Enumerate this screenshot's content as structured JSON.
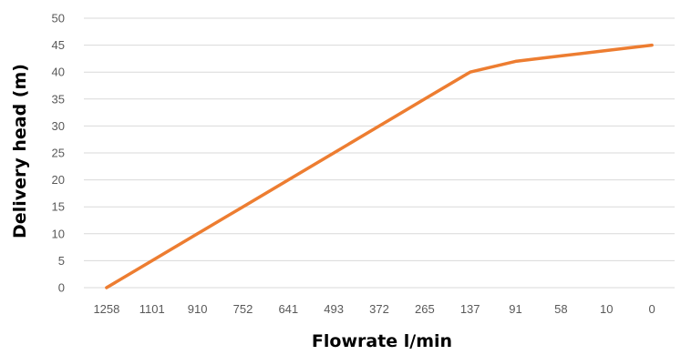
{
  "chart_data": {
    "type": "line",
    "title": "",
    "xlabel": "Flowrate l/min",
    "ylabel": "Delivery head (m)",
    "categories": [
      "1258",
      "1101",
      "910",
      "752",
      "641",
      "493",
      "372",
      "265",
      "137",
      "91",
      "58",
      "10",
      "0"
    ],
    "series": [
      {
        "values": [
          0,
          5,
          10,
          15,
          20,
          25,
          30,
          35,
          40,
          42,
          43,
          44,
          45
        ],
        "color": "#ed7d31"
      }
    ],
    "ylim": [
      0,
      50
    ],
    "yticks": [
      0,
      5,
      10,
      15,
      20,
      25,
      30,
      35,
      40,
      45,
      50
    ],
    "grid": "horizontal",
    "legend": "none"
  }
}
